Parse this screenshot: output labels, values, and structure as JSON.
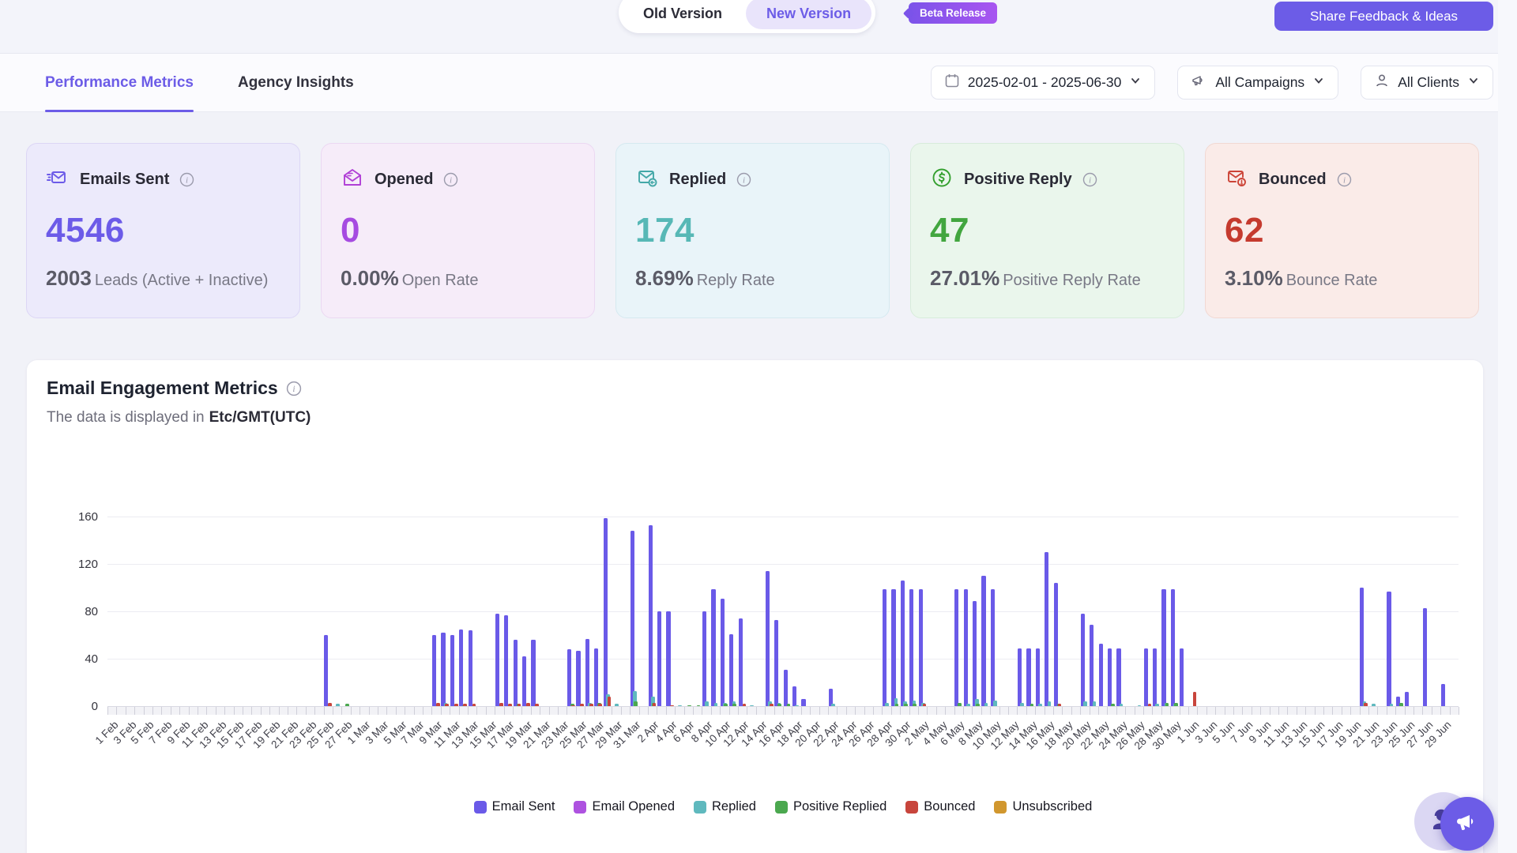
{
  "header": {
    "toggle": {
      "old": "Old Version",
      "new": "New Version"
    },
    "beta_badge": "Beta Release",
    "share_button": "Share Feedback & Ideas"
  },
  "tabs": {
    "performance": "Performance Metrics",
    "agency": "Agency Insights"
  },
  "filters": {
    "date_range": "2025-02-01 - 2025-06-30",
    "campaigns": "All Campaigns",
    "clients": "All Clients"
  },
  "cards": [
    {
      "title": "Emails Sent",
      "value": "4546",
      "sub_value": "2003",
      "sub_label": "Leads (Active + Inactive)",
      "bg": "#ECEAFB",
      "border": "#DCD6F5",
      "accent": "#6C5BE8",
      "icon": "envelope-send-icon"
    },
    {
      "title": "Opened",
      "value": "0",
      "sub_value": "0.00%",
      "sub_label": "Open Rate",
      "bg": "#F6ECF9",
      "border": "#EBD8F2",
      "accent": "#A64BE1",
      "icon": "envelope-open-icon"
    },
    {
      "title": "Replied",
      "value": "174",
      "sub_value": "8.69%",
      "sub_label": "Reply Rate",
      "bg": "#E9F4F9",
      "border": "#D5E9F0",
      "accent": "#57B8B6",
      "icon": "envelope-reply-icon"
    },
    {
      "title": "Positive Reply",
      "value": "47",
      "sub_value": "27.01%",
      "sub_label": "Positive Reply Rate",
      "bg": "#EAF6EC",
      "border": "#D7ECDA",
      "accent": "#42A63F",
      "icon": "dollar-circle-icon"
    },
    {
      "title": "Bounced",
      "value": "62",
      "sub_value": "3.10%",
      "sub_label": "Bounce Rate",
      "bg": "#FAEBE8",
      "border": "#F1D8D2",
      "accent": "#C53A2E",
      "icon": "envelope-alert-icon"
    }
  ],
  "chart": {
    "title": "Email Engagement Metrics",
    "subtitle_prefix": "The data is displayed in",
    "timezone": "Etc/GMT(UTC)"
  },
  "chart_data": {
    "type": "bar",
    "title": "Email Engagement Metrics",
    "ylim": [
      0,
      160
    ],
    "yticks": [
      0,
      40,
      80,
      120,
      160
    ],
    "grid": true,
    "legend_position": "bottom",
    "months": [
      {
        "name": "Feb",
        "days": 28
      },
      {
        "name": "Mar",
        "days": 31
      },
      {
        "name": "Apr",
        "days": 30
      },
      {
        "name": "May",
        "days": 31
      },
      {
        "name": "Jun",
        "days": 30
      }
    ],
    "x_label_every": 2,
    "legend": [
      {
        "label": "Email Sent",
        "color": "#6A5AE8"
      },
      {
        "label": "Email Opened",
        "color": "#AE52E0"
      },
      {
        "label": "Replied",
        "color": "#5FB9BE"
      },
      {
        "label": "Positive Replied",
        "color": "#4BA84F"
      },
      {
        "label": "Bounced",
        "color": "#C8453C"
      },
      {
        "label": "Unsubscribed",
        "color": "#D1972E"
      }
    ],
    "series": [
      {
        "name": "Email Sent",
        "color": "#6A5AE8",
        "points": {
          "25 Feb": 60,
          "9 Mar": 60,
          "10 Mar": 62,
          "11 Mar": 60,
          "12 Mar": 65,
          "13 Mar": 64,
          "16 Mar": 78,
          "17 Mar": 77,
          "18 Mar": 56,
          "19 Mar": 42,
          "20 Mar": 56,
          "24 Mar": 48,
          "25 Mar": 47,
          "26 Mar": 57,
          "27 Mar": 49,
          "28 Mar": 159,
          "31 Mar": 148,
          "2 Apr": 153,
          "3 Apr": 80,
          "4 Apr": 80,
          "8 Apr": 80,
          "9 Apr": 99,
          "10 Apr": 91,
          "11 Apr": 61,
          "12 Apr": 74,
          "15 Apr": 114,
          "16 Apr": 73,
          "17 Apr": 31,
          "18 Apr": 17,
          "19 Apr": 6,
          "22 Apr": 15,
          "28 Apr": 99,
          "29 Apr": 99,
          "30 Apr": 106,
          "1 May": 99,
          "2 May": 99,
          "6 May": 99,
          "7 May": 99,
          "8 May": 89,
          "9 May": 110,
          "10 May": 99,
          "13 May": 49,
          "14 May": 49,
          "15 May": 49,
          "16 May": 130,
          "17 May": 104,
          "20 May": 78,
          "21 May": 69,
          "22 May": 53,
          "23 May": 49,
          "24 May": 49,
          "27 May": 49,
          "28 May": 49,
          "29 May": 99,
          "30 May": 99,
          "31 May": 49,
          "20 Jun": 100,
          "23 Jun": 97,
          "24 Jun": 8,
          "25 Jun": 12,
          "27 Jun": 83,
          "29 Jun": 19
        }
      },
      {
        "name": "Email Opened",
        "color": "#AE52E0",
        "points": {}
      },
      {
        "name": "Replied",
        "color": "#5FB9BE",
        "points": {
          "26 Feb": 2,
          "10 Mar": 3,
          "26 Mar": 3,
          "27 Mar": 2,
          "28 Mar": 10,
          "29 Mar": 2,
          "31 Mar": 13,
          "2 Apr": 8,
          "5 Apr": 1,
          "8 Apr": 4,
          "9 Apr": 3,
          "10 Apr": 3,
          "11 Apr": 4,
          "13 Apr": 1,
          "15 Apr": 4,
          "16 Apr": 3,
          "18 Apr": 1,
          "22 Apr": 2,
          "28 Apr": 3,
          "29 Apr": 7,
          "30 Apr": 4,
          "1 May": 5,
          "2 May": 3,
          "7 May": 2,
          "8 May": 6,
          "9 May": 3,
          "10 May": 5,
          "13 May": 3,
          "15 May": 2,
          "16 May": 4,
          "20 May": 4,
          "21 May": 4,
          "24 May": 2,
          "26 May": 1,
          "28 May": 2,
          "29 May": 3,
          "30 May": 2,
          "20 Jun": 4,
          "21 Jun": 2,
          "23 Jun": 2
        }
      },
      {
        "name": "Positive Replied",
        "color": "#4BA84F",
        "points": {
          "27 Feb": 2,
          "12 Mar": 1,
          "18 Mar": 2,
          "24 Mar": 2,
          "27 Mar": 3,
          "31 Mar": 4,
          "2 Apr": 3,
          "6 Apr": 1,
          "7 Apr": 1,
          "10 Apr": 2,
          "11 Apr": 2,
          "16 Apr": 2,
          "17 Apr": 2,
          "29 Apr": 2,
          "30 Apr": 2,
          "1 May": 2,
          "6 May": 3,
          "8 May": 2,
          "14 May": 2,
          "17 May": 2,
          "23 May": 2,
          "29 May": 3,
          "30 May": 3,
          "24 Jun": 3
        }
      },
      {
        "name": "Bounced",
        "color": "#C8453C",
        "points": {
          "25 Feb": 3,
          "9 Mar": 3,
          "10 Mar": 2,
          "11 Mar": 2,
          "12 Mar": 2,
          "13 Mar": 2,
          "16 Mar": 3,
          "17 Mar": 2,
          "18 Mar": 2,
          "19 Mar": 3,
          "20 Mar": 2,
          "24 Mar": 1,
          "25 Mar": 2,
          "26 Mar": 2,
          "27 Mar": 2,
          "28 Mar": 8,
          "2 Apr": 3,
          "4 Apr": 1,
          "12 Apr": 2,
          "15 Apr": 2,
          "2 May": 2,
          "17 May": 2,
          "27 May": 2,
          "1 Jun": 12,
          "20 Jun": 3
        }
      },
      {
        "name": "Unsubscribed",
        "color": "#D1972E",
        "points": {}
      }
    ]
  }
}
